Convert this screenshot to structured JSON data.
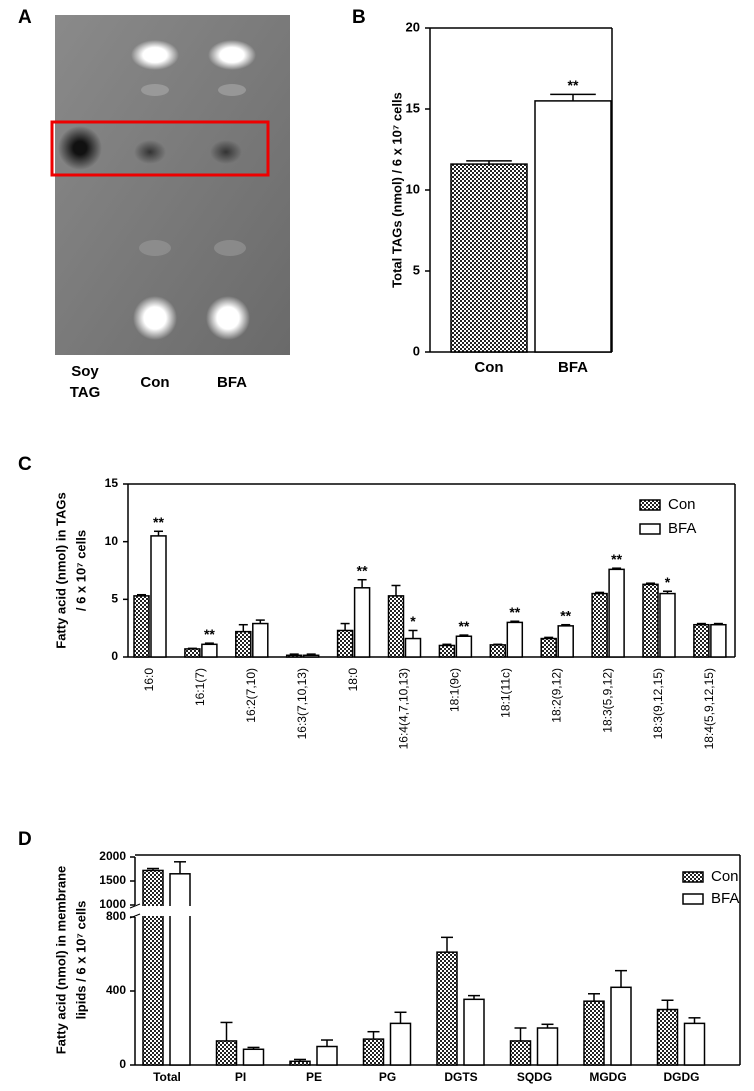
{
  "panel_a": {
    "label": "A",
    "lane_labels": [
      [
        "Soy",
        "TAG"
      ],
      [
        "Con"
      ],
      [
        "BFA"
      ]
    ]
  },
  "chart_data": [
    {
      "type": "bar",
      "panel": "B",
      "y_label": "Total TAGs (nmol) / 6 x 10⁷ cells",
      "categories": [
        "Con",
        "BFA"
      ],
      "values": [
        11.6,
        15.5
      ],
      "errors": [
        0.2,
        0.4
      ],
      "annotations": [
        null,
        "**"
      ],
      "ylim": [
        0,
        20
      ],
      "yticks": [
        0,
        5,
        10,
        15,
        20
      ]
    },
    {
      "type": "bar",
      "panel": "C",
      "y_label": [
        "Fatty acid (nmol) in TAGs",
        "/ 6 x 10⁷ cells"
      ],
      "categories": [
        "16:0",
        "16:1(7)",
        "16:2(7,10)",
        "16:3(7,10,13)",
        "18:0",
        "16:4(4,7,10,13)",
        "18:1(9c)",
        "18:1(11c)",
        "18:2(9,12)",
        "18:3(5,9,12)",
        "18:3(9,12,15)",
        "18:4(5,9,12,15)"
      ],
      "series": [
        {
          "name": "Con",
          "values": [
            5.3,
            0.7,
            2.2,
            0.15,
            2.3,
            5.3,
            1.0,
            1.05,
            1.6,
            5.5,
            6.3,
            2.8
          ],
          "errors": [
            0.1,
            0.05,
            0.6,
            0.1,
            0.6,
            0.9,
            0.1,
            0.05,
            0.1,
            0.1,
            0.1,
            0.1
          ],
          "annotations": [
            null,
            null,
            null,
            null,
            null,
            null,
            null,
            null,
            null,
            null,
            null,
            null
          ]
        },
        {
          "name": "BFA",
          "values": [
            10.5,
            1.1,
            2.9,
            0.15,
            6.0,
            1.6,
            1.8,
            3.0,
            2.7,
            7.6,
            5.5,
            2.8
          ],
          "errors": [
            0.4,
            0.1,
            0.3,
            0.1,
            0.7,
            0.7,
            0.1,
            0.1,
            0.1,
            0.1,
            0.2,
            0.1
          ],
          "annotations": [
            "**",
            "**",
            null,
            null,
            "**",
            "*",
            "**",
            "**",
            "**",
            "**",
            "*",
            null
          ]
        }
      ],
      "ylim": [
        0,
        15
      ],
      "yticks": [
        0,
        5,
        10,
        15
      ],
      "legend": "upper right"
    },
    {
      "type": "bar",
      "panel": "D",
      "y_label": [
        "Fatty acid (nmol) in membrane",
        "lipids / 6 x 10⁷ cells"
      ],
      "categories": [
        "Total",
        "PI",
        "PE",
        "PG",
        "DGTS",
        "SQDG",
        "MGDG",
        "DGDG"
      ],
      "series": [
        {
          "name": "Con",
          "values": [
            1720,
            130,
            20,
            140,
            610,
            130,
            345,
            300
          ],
          "errors": [
            40,
            100,
            10,
            40,
            80,
            70,
            40,
            50
          ]
        },
        {
          "name": "BFA",
          "values": [
            1650,
            85,
            100,
            225,
            355,
            200,
            420,
            225
          ],
          "errors": [
            250,
            10,
            35,
            60,
            20,
            20,
            90,
            30
          ]
        }
      ],
      "y_segments": [
        {
          "ylim": [
            0,
            800
          ],
          "yticks": [
            0,
            400,
            800
          ]
        },
        {
          "ylim": [
            1000,
            2000
          ],
          "yticks": [
            1000,
            1500,
            2000
          ]
        }
      ],
      "legend": "upper right"
    }
  ]
}
